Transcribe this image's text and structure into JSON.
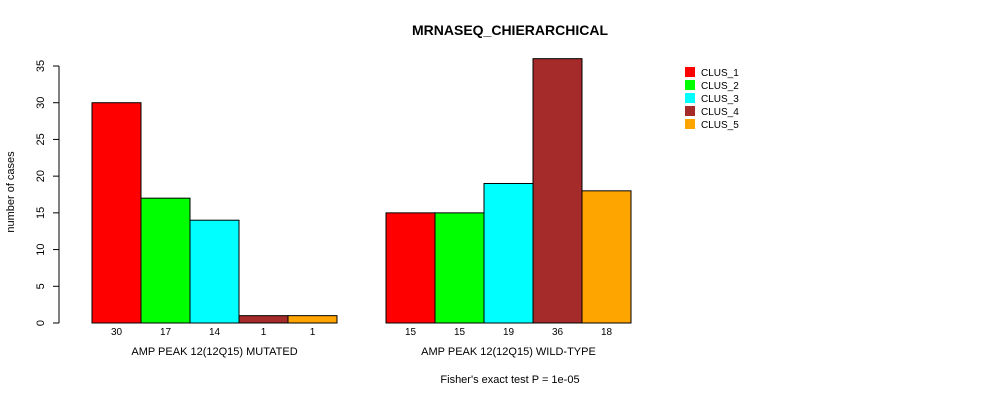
{
  "chart_data": {
    "type": "bar",
    "title": "MRNASEQ_CHIERARCHICAL",
    "ylabel": "number of cases",
    "xlabel": "",
    "ylim": [
      0,
      35
    ],
    "yticks": [
      0,
      5,
      10,
      15,
      20,
      25,
      30,
      35
    ],
    "footnote": "Fisher's exact test P = 1e-05",
    "legend_position": "top-right",
    "grid": false,
    "groups": [
      {
        "label": "AMP PEAK 12(12Q15) MUTATED",
        "values": [
          30,
          17,
          14,
          1,
          1
        ]
      },
      {
        "label": "AMP PEAK 12(12Q15) WILD-TYPE",
        "values": [
          15,
          15,
          19,
          36,
          18
        ]
      }
    ],
    "series": [
      {
        "name": "CLUS_1",
        "color": "#ff0000"
      },
      {
        "name": "CLUS_2",
        "color": "#00ff00"
      },
      {
        "name": "CLUS_3",
        "color": "#00ffff"
      },
      {
        "name": "CLUS_4",
        "color": "#a52a2a"
      },
      {
        "name": "CLUS_5",
        "color": "#ffa500"
      }
    ]
  }
}
